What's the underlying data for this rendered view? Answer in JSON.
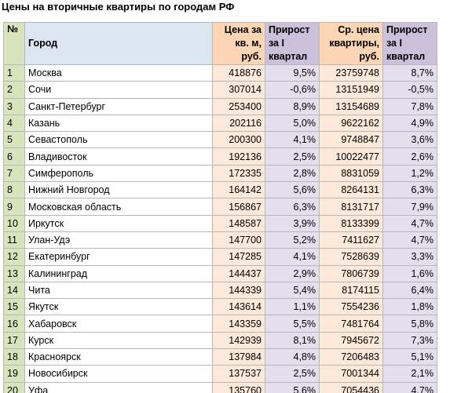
{
  "title": "Цены на вторичные квартиры по городам РФ",
  "table": {
    "header": [
      [
        "№"
      ],
      [
        "Город"
      ],
      [
        "Цена за",
        "кв. м,",
        "руб."
      ],
      [
        "Прирост",
        "за I",
        "квартал"
      ],
      [
        "Ср. цена",
        "квартиры,",
        "руб."
      ],
      [
        "Прирост",
        "за I",
        "квартал"
      ]
    ],
    "rows": [
      [
        "1",
        "Москва",
        "418876",
        "9,5%",
        "23759748",
        "8,7%"
      ],
      [
        "2",
        "Сочи",
        "307014",
        "-0,6%",
        "13151949",
        "-0,5%"
      ],
      [
        "3",
        "Санкт-Петербург",
        "253400",
        "8,9%",
        "13154689",
        "7,8%"
      ],
      [
        "4",
        "Казань",
        "202116",
        "5,0%",
        "9622162",
        "4,9%"
      ],
      [
        "5",
        "Севастополь",
        "200300",
        "4,1%",
        "9748847",
        "3,6%"
      ],
      [
        "6",
        "Владивосток",
        "192136",
        "2,5%",
        "10022477",
        "2,6%"
      ],
      [
        "7",
        "Симферополь",
        "172335",
        "2,8%",
        "8831059",
        "1,2%"
      ],
      [
        "8",
        "Нижний Новгород",
        "164142",
        "5,6%",
        "8264131",
        "6,3%"
      ],
      [
        "9",
        "Московская область",
        "156867",
        "6,3%",
        "8131717",
        "7,9%"
      ],
      [
        "10",
        "Иркутск",
        "148587",
        "3,9%",
        "8133399",
        "4,7%"
      ],
      [
        "11",
        "Улан-Удэ",
        "147700",
        "5,2%",
        "7411627",
        "4,7%"
      ],
      [
        "12",
        "Екатеринбург",
        "147285",
        "4,1%",
        "7528639",
        "3,3%"
      ],
      [
        "13",
        "Калининград",
        "144437",
        "2,9%",
        "7806739",
        "1,6%"
      ],
      [
        "14",
        "Чита",
        "144339",
        "5,4%",
        "8174115",
        "6,4%"
      ],
      [
        "15",
        "Якутск",
        "143614",
        "1,1%",
        "7554236",
        "1,8%"
      ],
      [
        "16",
        "Хабаровск",
        "143359",
        "5,5%",
        "7481764",
        "5,8%"
      ],
      [
        "17",
        "Курск",
        "142939",
        "8,1%",
        "7945672",
        "7,3%"
      ],
      [
        "18",
        "Красноярск",
        "137984",
        "4,8%",
        "7206483",
        "5,1%"
      ],
      [
        "19",
        "Новосибирск",
        "137537",
        "2,5%",
        "7001344",
        "2,1%"
      ],
      [
        "20",
        "Уфа",
        "135760",
        "5,6%",
        "7054436",
        "4,7%"
      ]
    ]
  }
}
